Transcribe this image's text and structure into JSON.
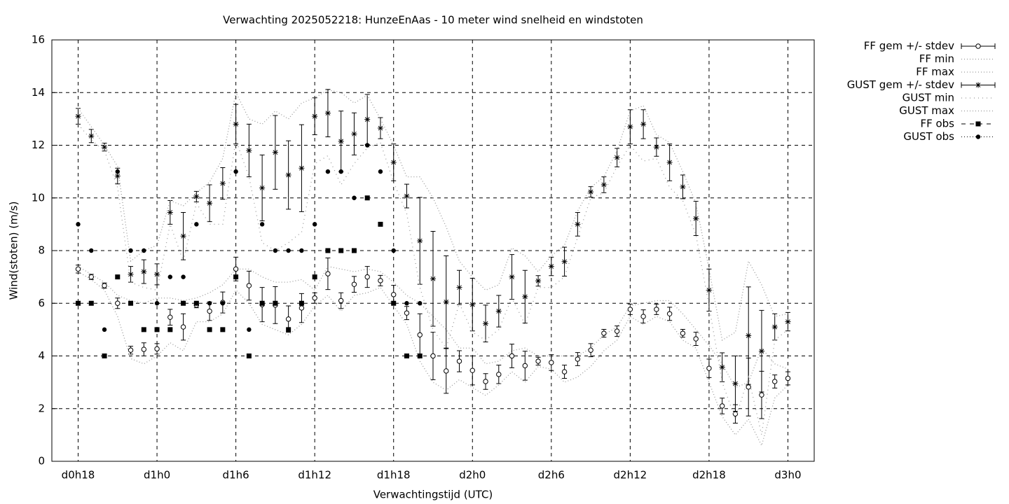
{
  "chart_data": {
    "type": "errorbar-line",
    "title": "Verwachting 2025052218: HunzeEnAas - 10 meter wind snelheid en windstoten",
    "x_label": "Verwachtingstijd (UTC)",
    "y_label": "Wind(stoten) (m/s)",
    "xlim": [
      16,
      74
    ],
    "xticks": [
      {
        "value": 18,
        "label": "d0h18"
      },
      {
        "value": 24,
        "label": "d1h0"
      },
      {
        "value": 30,
        "label": "d1h6"
      },
      {
        "value": 36,
        "label": "d1h12"
      },
      {
        "value": 42,
        "label": "d1h18"
      },
      {
        "value": 48,
        "label": "d2h0"
      },
      {
        "value": 54,
        "label": "d2h6"
      },
      {
        "value": 60,
        "label": "d2h12"
      },
      {
        "value": 66,
        "label": "d2h18"
      },
      {
        "value": 72,
        "label": "d3h0"
      }
    ],
    "ylim": [
      0,
      16
    ],
    "yticks": [
      0,
      2,
      4,
      6,
      8,
      10,
      12,
      14,
      16
    ],
    "grid": true,
    "x": [
      18,
      19,
      20,
      21,
      22,
      23,
      24,
      25,
      26,
      27,
      28,
      29,
      30,
      31,
      32,
      33,
      34,
      35,
      36,
      37,
      38,
      39,
      40,
      41,
      42,
      43,
      44,
      45,
      46,
      47,
      48,
      49,
      50,
      51,
      52,
      53,
      54,
      55,
      56,
      57,
      58,
      59,
      60,
      61,
      62,
      63,
      64,
      65,
      66,
      67,
      68,
      69,
      70,
      71,
      72
    ],
    "series": [
      {
        "name": "FF gem +/- stdev",
        "color": "#000000",
        "marker": "open-circle",
        "values": [
          7.3,
          7.0,
          6.67,
          6.0,
          4.22,
          4.25,
          4.27,
          5.47,
          5.1,
          5.93,
          5.7,
          6.03,
          7.3,
          6.67,
          5.95,
          5.93,
          5.4,
          5.82,
          6.2,
          7.12,
          6.1,
          6.72,
          7.0,
          6.86,
          6.33,
          5.63,
          4.8,
          4.0,
          3.43,
          3.8,
          3.45,
          3.03,
          3.3,
          4.0,
          3.63,
          3.8,
          3.75,
          3.4,
          3.88,
          4.22,
          4.86,
          4.94,
          5.77,
          5.5,
          5.77,
          5.6,
          4.86,
          4.65,
          3.53,
          2.1,
          1.8,
          2.82,
          2.52,
          3.03,
          3.15
        ],
        "errors": [
          0.15,
          0.1,
          0.1,
          0.2,
          0.15,
          0.25,
          0.2,
          0.3,
          0.5,
          0.1,
          0.35,
          0.4,
          0.45,
          0.55,
          0.65,
          0.7,
          0.5,
          0.55,
          0.2,
          0.6,
          0.3,
          0.3,
          0.4,
          0.2,
          0.35,
          0.25,
          0.8,
          0.9,
          0.85,
          0.4,
          0.55,
          0.3,
          0.35,
          0.45,
          0.55,
          0.15,
          0.3,
          0.25,
          0.25,
          0.25,
          0.15,
          0.2,
          0.2,
          0.25,
          0.2,
          0.25,
          0.15,
          0.25,
          0.35,
          0.3,
          0.35,
          1.1,
          0.9,
          0.25,
          0.25
        ]
      },
      {
        "name": "FF min",
        "color": "#999999",
        "dash": "1,3",
        "values": [
          7.2,
          6.9,
          6.5,
          5.5,
          3.9,
          3.7,
          4.0,
          4.5,
          4.2,
          5.3,
          5.3,
          5.6,
          6.5,
          6.0,
          5.2,
          5.0,
          4.8,
          5.2,
          5.9,
          6.3,
          5.7,
          6.3,
          6.4,
          6.6,
          5.9,
          5.2,
          3.8,
          3.0,
          2.7,
          3.1,
          2.8,
          2.5,
          2.9,
          3.4,
          3.0,
          3.6,
          3.5,
          3.0,
          3.2,
          3.6,
          4.2,
          4.6,
          5.5,
          5.2,
          5.5,
          5.3,
          4.6,
          4.3,
          3.0,
          1.7,
          1.0,
          1.6,
          0.6,
          2.4,
          2.9
        ]
      },
      {
        "name": "FF max",
        "color": "#999999",
        "dash": "1,3",
        "values": [
          7.4,
          7.1,
          6.8,
          6.3,
          6.1,
          6.0,
          6.2,
          6.2,
          6.1,
          6.2,
          6.4,
          6.7,
          7.3,
          7.3,
          7.0,
          6.8,
          6.8,
          6.9,
          6.5,
          7.4,
          7.3,
          7.2,
          7.3,
          7.2,
          6.8,
          6.3,
          6.0,
          5.5,
          5.0,
          4.3,
          4.3,
          3.7,
          3.8,
          4.2,
          4.3,
          4.0,
          4.0,
          4.0,
          4.0,
          4.3,
          4.8,
          5.1,
          5.9,
          6.0,
          6.1,
          6.1,
          5.6,
          5.0,
          4.4,
          3.7,
          2.8,
          3.0,
          4.3,
          3.7,
          3.5
        ]
      },
      {
        "name": "GUST gem +/- stdev",
        "color": "#000000",
        "marker": "star",
        "values": [
          13.1,
          12.35,
          11.93,
          10.83,
          7.1,
          7.2,
          7.1,
          9.45,
          8.55,
          10.05,
          9.8,
          10.55,
          12.8,
          11.8,
          10.38,
          11.73,
          10.87,
          11.13,
          13.1,
          13.22,
          12.15,
          12.43,
          12.98,
          12.65,
          11.35,
          10.07,
          8.37,
          6.93,
          6.05,
          6.6,
          5.95,
          5.23,
          5.7,
          7.0,
          6.25,
          6.85,
          7.4,
          7.58,
          9.0,
          10.23,
          10.5,
          11.53,
          12.7,
          12.8,
          11.93,
          11.35,
          10.42,
          9.22,
          6.5,
          3.57,
          2.95,
          4.77,
          4.18,
          5.1,
          5.3
        ],
        "errors": [
          0.3,
          0.25,
          0.15,
          0.3,
          0.3,
          0.45,
          0.4,
          0.45,
          0.9,
          0.2,
          0.7,
          0.6,
          0.75,
          1.0,
          1.25,
          1.4,
          1.3,
          1.65,
          0.7,
          0.9,
          1.15,
          0.8,
          0.95,
          0.4,
          0.7,
          0.45,
          1.65,
          1.8,
          1.75,
          0.65,
          1.0,
          0.7,
          0.6,
          0.85,
          1.0,
          0.2,
          0.35,
          0.55,
          0.45,
          0.2,
          0.3,
          0.35,
          0.65,
          0.55,
          0.35,
          0.7,
          0.45,
          0.65,
          0.8,
          0.55,
          1.05,
          1.85,
          1.55,
          0.5,
          0.35
        ]
      },
      {
        "name": "GUST min",
        "color": "#999999",
        "dash": "1,5",
        "values": [
          12.8,
          12.2,
          11.8,
          10.4,
          6.8,
          6.6,
          6.5,
          9.0,
          7.6,
          9.8,
          9.0,
          9.0,
          12.2,
          10.8,
          8.3,
          8.0,
          8.3,
          8.7,
          11.3,
          11.6,
          10.5,
          11.3,
          11.9,
          12.1,
          10.6,
          9.4,
          6.6,
          5.0,
          4.3,
          6.0,
          4.9,
          4.6,
          5.0,
          6.2,
          5.2,
          6.6,
          6.6,
          7.0,
          8.5,
          10.0,
          10.2,
          11.2,
          12.0,
          11.4,
          11.5,
          10.4,
          9.9,
          8.6,
          5.9,
          3.0,
          1.6,
          3.2,
          1.0,
          4.6,
          5.0
        ]
      },
      {
        "name": "GUST max",
        "color": "#999999",
        "dash": "1,3",
        "values": [
          13.4,
          12.7,
          12.0,
          11.2,
          7.6,
          8.0,
          8.2,
          9.9,
          9.7,
          10.2,
          10.6,
          11.5,
          14.0,
          13.0,
          12.8,
          13.3,
          13.0,
          13.6,
          13.8,
          14.1,
          14.0,
          13.6,
          13.9,
          13.0,
          12.0,
          10.8,
          10.8,
          10.0,
          8.9,
          7.6,
          7.0,
          6.5,
          6.7,
          8.1,
          7.8,
          7.2,
          7.8,
          8.2,
          9.5,
          10.4,
          10.8,
          11.8,
          13.3,
          13.5,
          12.4,
          12.1,
          11.0,
          9.8,
          7.3,
          4.6,
          4.9,
          7.6,
          6.7,
          5.5,
          5.6
        ]
      },
      {
        "name": "FF obs",
        "color": "#000000",
        "marker": "square",
        "values": [
          6,
          6,
          4,
          7,
          6,
          5,
          5,
          5,
          6,
          6,
          5,
          5,
          7,
          4,
          6,
          6,
          5,
          6,
          7,
          8,
          8,
          8,
          10,
          9,
          6,
          4,
          4,
          null,
          null,
          null,
          null,
          null,
          null,
          null,
          null,
          null,
          null,
          null,
          null,
          null,
          null,
          null,
          null,
          null,
          null,
          null,
          null,
          null,
          null,
          null,
          null,
          null,
          null,
          null,
          null
        ]
      },
      {
        "name": "GUST obs",
        "color": "#000000",
        "marker": "dot",
        "values": [
          9,
          8,
          5,
          11,
          8,
          8,
          6,
          7,
          7,
          9,
          6,
          6,
          11,
          5,
          9,
          8,
          8,
          8,
          9,
          11,
          11,
          10,
          12,
          11,
          8,
          6,
          6,
          null,
          null,
          null,
          null,
          null,
          null,
          null,
          null,
          null,
          null,
          null,
          null,
          null,
          null,
          null,
          null,
          null,
          null,
          null,
          null,
          null,
          null,
          null,
          null,
          null,
          null,
          null,
          null
        ]
      }
    ]
  }
}
